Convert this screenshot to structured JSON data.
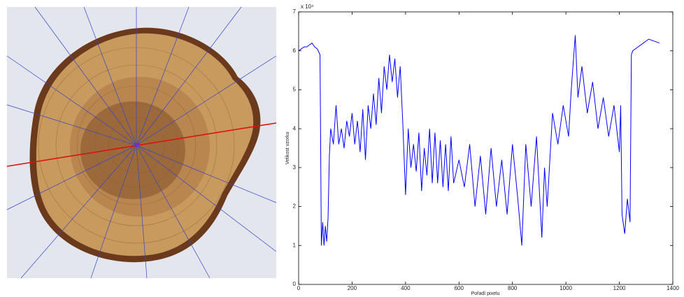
{
  "chart_data": {
    "type": "line",
    "x_label": "Pořadí pixelu",
    "y_label": "Velikost vzorku",
    "y_multiplier": "x 10⁴",
    "x": [
      0,
      10,
      20,
      30,
      40,
      50,
      60,
      70,
      80,
      85,
      90,
      95,
      100,
      105,
      110,
      115,
      120,
      130,
      140,
      150,
      160,
      170,
      180,
      190,
      200,
      210,
      220,
      230,
      240,
      250,
      260,
      270,
      280,
      290,
      300,
      310,
      320,
      330,
      340,
      350,
      360,
      370,
      380,
      390,
      400,
      410,
      420,
      430,
      440,
      450,
      460,
      470,
      480,
      490,
      500,
      510,
      520,
      530,
      540,
      550,
      560,
      570,
      580,
      600,
      620,
      640,
      660,
      680,
      700,
      720,
      740,
      760,
      780,
      800,
      820,
      835,
      850,
      870,
      890,
      910,
      920,
      930,
      950,
      970,
      990,
      1010,
      1020,
      1035,
      1045,
      1060,
      1080,
      1100,
      1120,
      1140,
      1160,
      1180,
      1200,
      1205,
      1210,
      1220,
      1230,
      1240,
      1245,
      1250,
      1270,
      1290,
      1310,
      1330,
      1350
    ],
    "series": [
      {
        "color": "#0000ff",
        "values": [
          6.0,
          6.05,
          6.1,
          6.1,
          6.15,
          6.2,
          6.1,
          6.05,
          5.9,
          1.0,
          1.6,
          1.0,
          1.5,
          1.1,
          1.7,
          3.3,
          4.0,
          3.6,
          4.6,
          3.6,
          4.0,
          3.5,
          4.2,
          3.8,
          4.4,
          3.6,
          4.2,
          3.4,
          4.5,
          3.2,
          4.6,
          4.0,
          4.9,
          4.1,
          5.3,
          4.4,
          5.6,
          5.0,
          5.9,
          5.2,
          5.8,
          4.8,
          5.6,
          4.1,
          2.3,
          4.0,
          3.0,
          3.6,
          2.9,
          3.9,
          2.4,
          3.5,
          2.8,
          4.0,
          2.6,
          3.9,
          2.6,
          3.7,
          2.5,
          3.6,
          2.4,
          3.8,
          2.6,
          3.2,
          2.5,
          3.6,
          2.0,
          3.3,
          1.8,
          3.5,
          2.0,
          3.2,
          1.8,
          3.6,
          2.2,
          1.0,
          3.6,
          2.0,
          3.8,
          1.2,
          3.0,
          2.0,
          4.4,
          3.6,
          4.6,
          3.8,
          5.0,
          6.4,
          4.8,
          5.6,
          4.4,
          5.2,
          4.0,
          4.8,
          3.8,
          4.6,
          3.4,
          4.6,
          1.8,
          1.3,
          2.2,
          1.6,
          5.9,
          6.0,
          6.1,
          6.2,
          6.3,
          6.25,
          6.2
        ]
      }
    ],
    "xlim": [
      0,
      1400
    ],
    "xticks": [
      0,
      200,
      400,
      600,
      800,
      1000,
      1200,
      1400
    ],
    "ylim": [
      0,
      7
    ],
    "yticks": [
      0,
      1,
      2,
      3,
      4,
      5,
      6,
      7
    ]
  }
}
